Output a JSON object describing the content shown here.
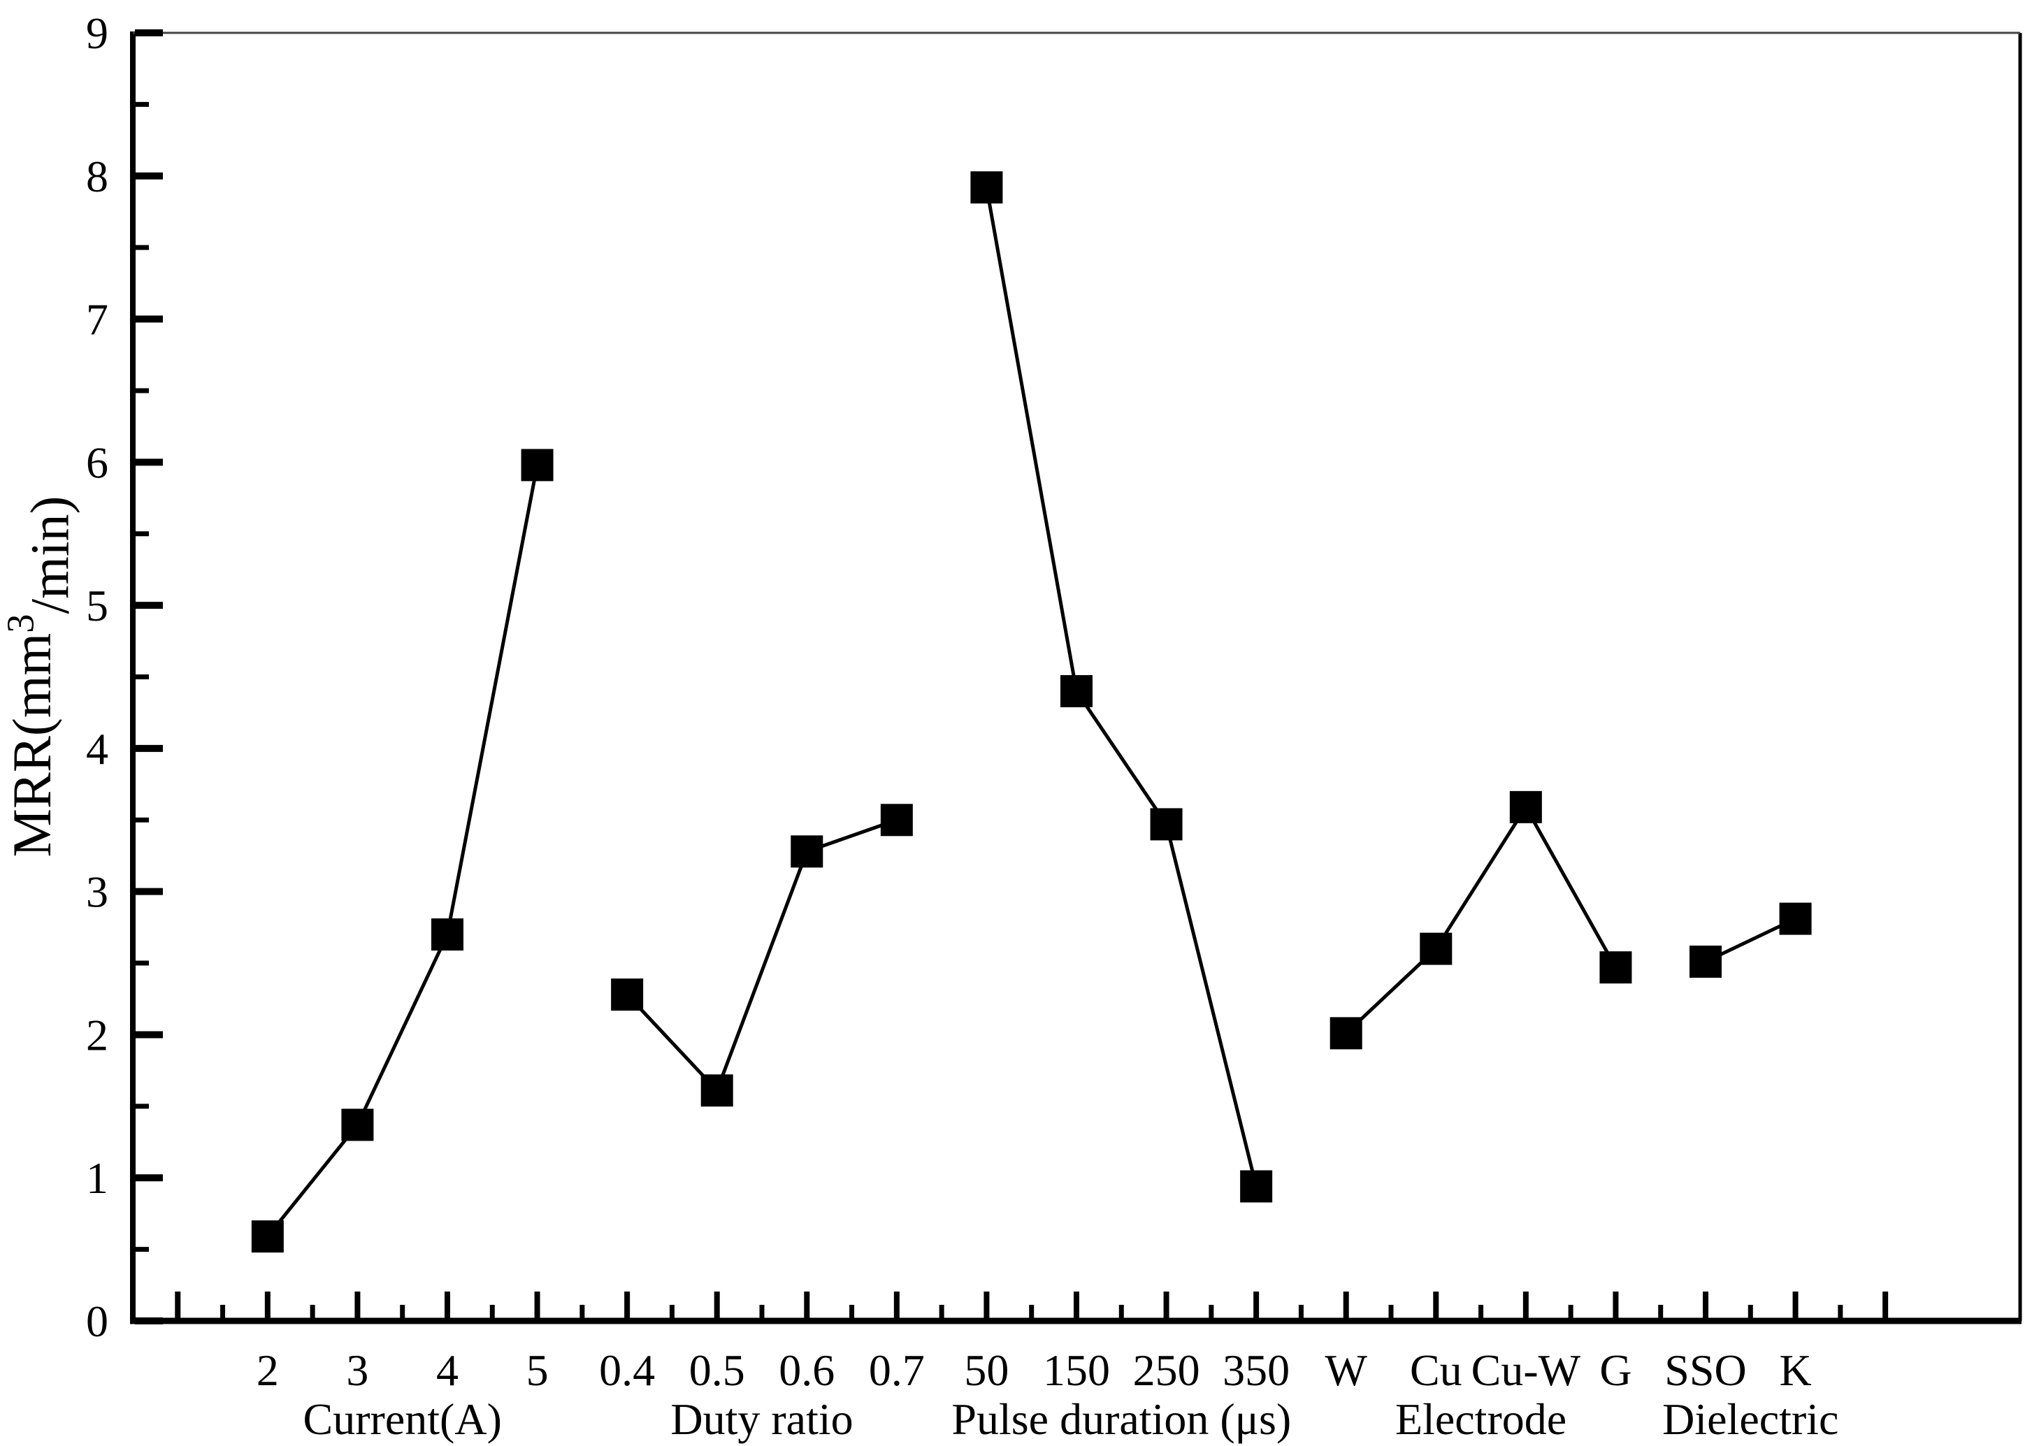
{
  "chart_data": {
    "type": "line",
    "title": "",
    "xlabel": "",
    "ylabel": "MRR(mm³/min)",
    "ylim": [
      0,
      9
    ],
    "y_major_tick_step": 1,
    "y_minor_tick_step": 0.5,
    "grid": false,
    "legend": null,
    "marker": "filled-square",
    "colors": {
      "foreground": "#000000",
      "background": "#ffffff"
    },
    "groups": [
      {
        "label": "Current(A)",
        "categories": [
          "2",
          "3",
          "4",
          "5"
        ],
        "values": [
          0.59,
          1.37,
          2.7,
          5.98
        ]
      },
      {
        "label": "Duty ratio",
        "categories": [
          "0.4",
          "0.5",
          "0.6",
          "0.7"
        ],
        "values": [
          2.28,
          1.61,
          3.28,
          3.5
        ]
      },
      {
        "label": "Pulse duration (μs)",
        "categories": [
          "50",
          "150",
          "250",
          "350"
        ],
        "values": [
          7.92,
          4.4,
          3.47,
          0.94
        ]
      },
      {
        "label": "Electrode",
        "categories": [
          "W",
          "Cu",
          "Cu-W",
          "G"
        ],
        "values": [
          2.01,
          2.6,
          3.59,
          2.47
        ]
      },
      {
        "label": "Dielectric",
        "categories": [
          "SSO",
          "K"
        ],
        "values": [
          2.51,
          2.81
        ]
      }
    ]
  }
}
